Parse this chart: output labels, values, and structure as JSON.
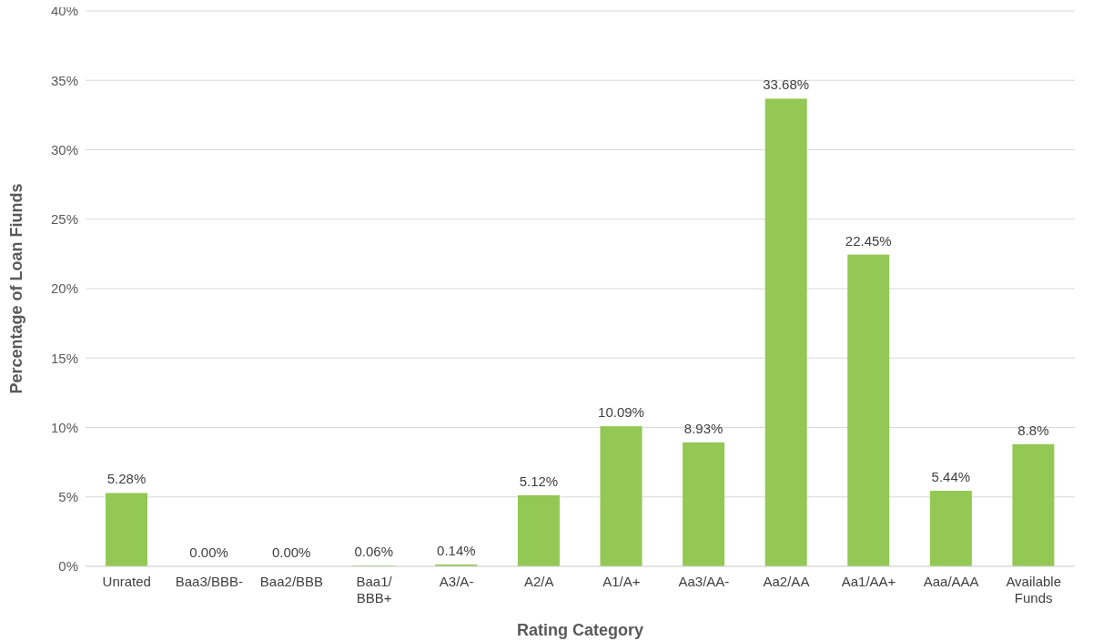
{
  "chart_data": {
    "type": "bar",
    "xlabel": "Rating Category",
    "ylabel": "Percentage of Loan Fiunds",
    "categories": [
      "Unrated",
      "Baa3/BBB-",
      "Baa2/BBB",
      "Baa1/\nBBB+",
      "A3/A-",
      "A2/A",
      "A1/A+",
      "Aa3/AA-",
      "Aa2/AA",
      "Aa1/AA+",
      "Aaa/AAA",
      "Available\nFunds"
    ],
    "values": [
      5.28,
      0,
      0,
      0.06,
      0.14,
      5.12,
      10.09,
      8.93,
      33.68,
      22.45,
      5.44,
      8.8
    ],
    "value_labels": [
      "5.28%",
      "0.00%",
      "0.00%",
      "0.06%",
      "0.14%",
      "5.12%",
      "10.09%",
      "8.93%",
      "33.68%",
      "22.45%",
      "5.44%",
      "8.8%"
    ],
    "color": "#92c853",
    "ylim": [
      0,
      40
    ],
    "yticks": [
      {
        "value": 0,
        "label": "0%"
      },
      {
        "value": 5,
        "label": "5%"
      },
      {
        "value": 10,
        "label": "10%"
      },
      {
        "value": 15,
        "label": "15%"
      },
      {
        "value": 20,
        "label": "20%"
      },
      {
        "value": 25,
        "label": "25%"
      },
      {
        "value": 30,
        "label": "30%"
      },
      {
        "value": 35,
        "label": "35%"
      },
      {
        "value": 40,
        "label": "40%"
      }
    ],
    "grid": "y",
    "legend": false
  }
}
